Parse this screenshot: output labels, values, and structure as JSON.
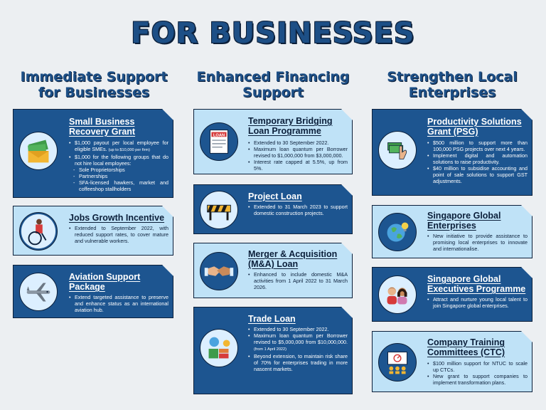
{
  "page_title": "FOR BUSINESSES",
  "columns": [
    {
      "title": "Immediate Support for Businesses"
    },
    {
      "title": "Enhanced Financing Support"
    },
    {
      "title": "Strengthen Local Enterprises"
    }
  ],
  "cards": {
    "sbrg": {
      "title": "Small Business Recovery Grant",
      "b1": "$1,000 payout per local employee for eligible SMEs.",
      "b1_note": "(up to $10,000 per firm)",
      "b2": "$1,000 for the following groups that do not hire local employees:",
      "s1": "Sole Proprietorships",
      "s2": "Partnerships",
      "s3": "SFA-licensed hawkers, market and coffeeshop stallholders"
    },
    "jgi": {
      "title": "Jobs Growth Incentive",
      "b1": "Extended to September 2022, with reduced support rates, to cover mature and vulnerable workers."
    },
    "asp": {
      "title": "Aviation Support Package",
      "b1": "Extend targeted assistance to preserve and enhance status as an international aviation hub."
    },
    "tblp": {
      "title": "Temporary Bridging Loan Programme",
      "icon_text": "LOAN",
      "b1": "Extended to 30 September 2022.",
      "b2": "Maximum loan quantum per Borrower revised to $1,000,000 from $3,000,000.",
      "b3": "Interest rate capped at 5.5%, up from 5%."
    },
    "project": {
      "title": "Project Loan",
      "b1": "Extended to 31 March 2023 to support domestic construction projects."
    },
    "ma": {
      "title": "Merger & Acquisition (M&A) Loan",
      "b1": "Enhanced to include domestic M&A activities from 1 April 2022 to 31 March 2026."
    },
    "trade": {
      "title": "Trade Loan",
      "b1": "Extended to 30 September 2022.",
      "b2": "Maximum loan quantum per Borrower revised to $5,000,000 from $10,000,000.",
      "b2_note": "(from 1 April 2022)",
      "b3": "Beyond extension, to maintain risk share of 70% for enterprises trading in more nascent markets."
    },
    "psg": {
      "title": "Productivity Solutions Grant (PSG)",
      "b1": "$500 million to support more than 100,000 PSG projects over next 4 years.",
      "b2": "Implement digital and automation solutions to raise productivity.",
      "b3": "$40 million to subsidise accounting and point of sale solutions to support GST adjustments."
    },
    "sge": {
      "title": "Singapore Global Enterprises",
      "b1": "New initiative to provide assistance to promising local enterprises to innovate and internationalise."
    },
    "sgep": {
      "title": "Singapore Global Executives Programme",
      "b1": "Attract and nurture young local talent to join Singapore global enterprises."
    },
    "ctc": {
      "title": "Company Training Committees (CTC)",
      "b1": "$100 million support for NTUC to scale up CTCs.",
      "b2": "New grant to support companies to implement transformation plans."
    }
  },
  "icons": {
    "sbrg": "money-envelope-icon",
    "jgi": "wheelchair-worker-icon",
    "asp": "airplane-icon",
    "tblp": "loan-document-icon",
    "project": "construction-barrier-icon",
    "ma": "handshake-icon",
    "trade": "trade-shipping-icon",
    "psg": "hand-money-icon",
    "sge": "globe-lightbulb-icon",
    "sgep": "young-executives-icon",
    "ctc": "training-presentation-icon"
  },
  "colors": {
    "dark_card": "#1d5590",
    "light_card": "#bfe2f7",
    "title_blue": "#1d4f86",
    "outline": "#0b1f3a",
    "background": "#eceff2"
  }
}
